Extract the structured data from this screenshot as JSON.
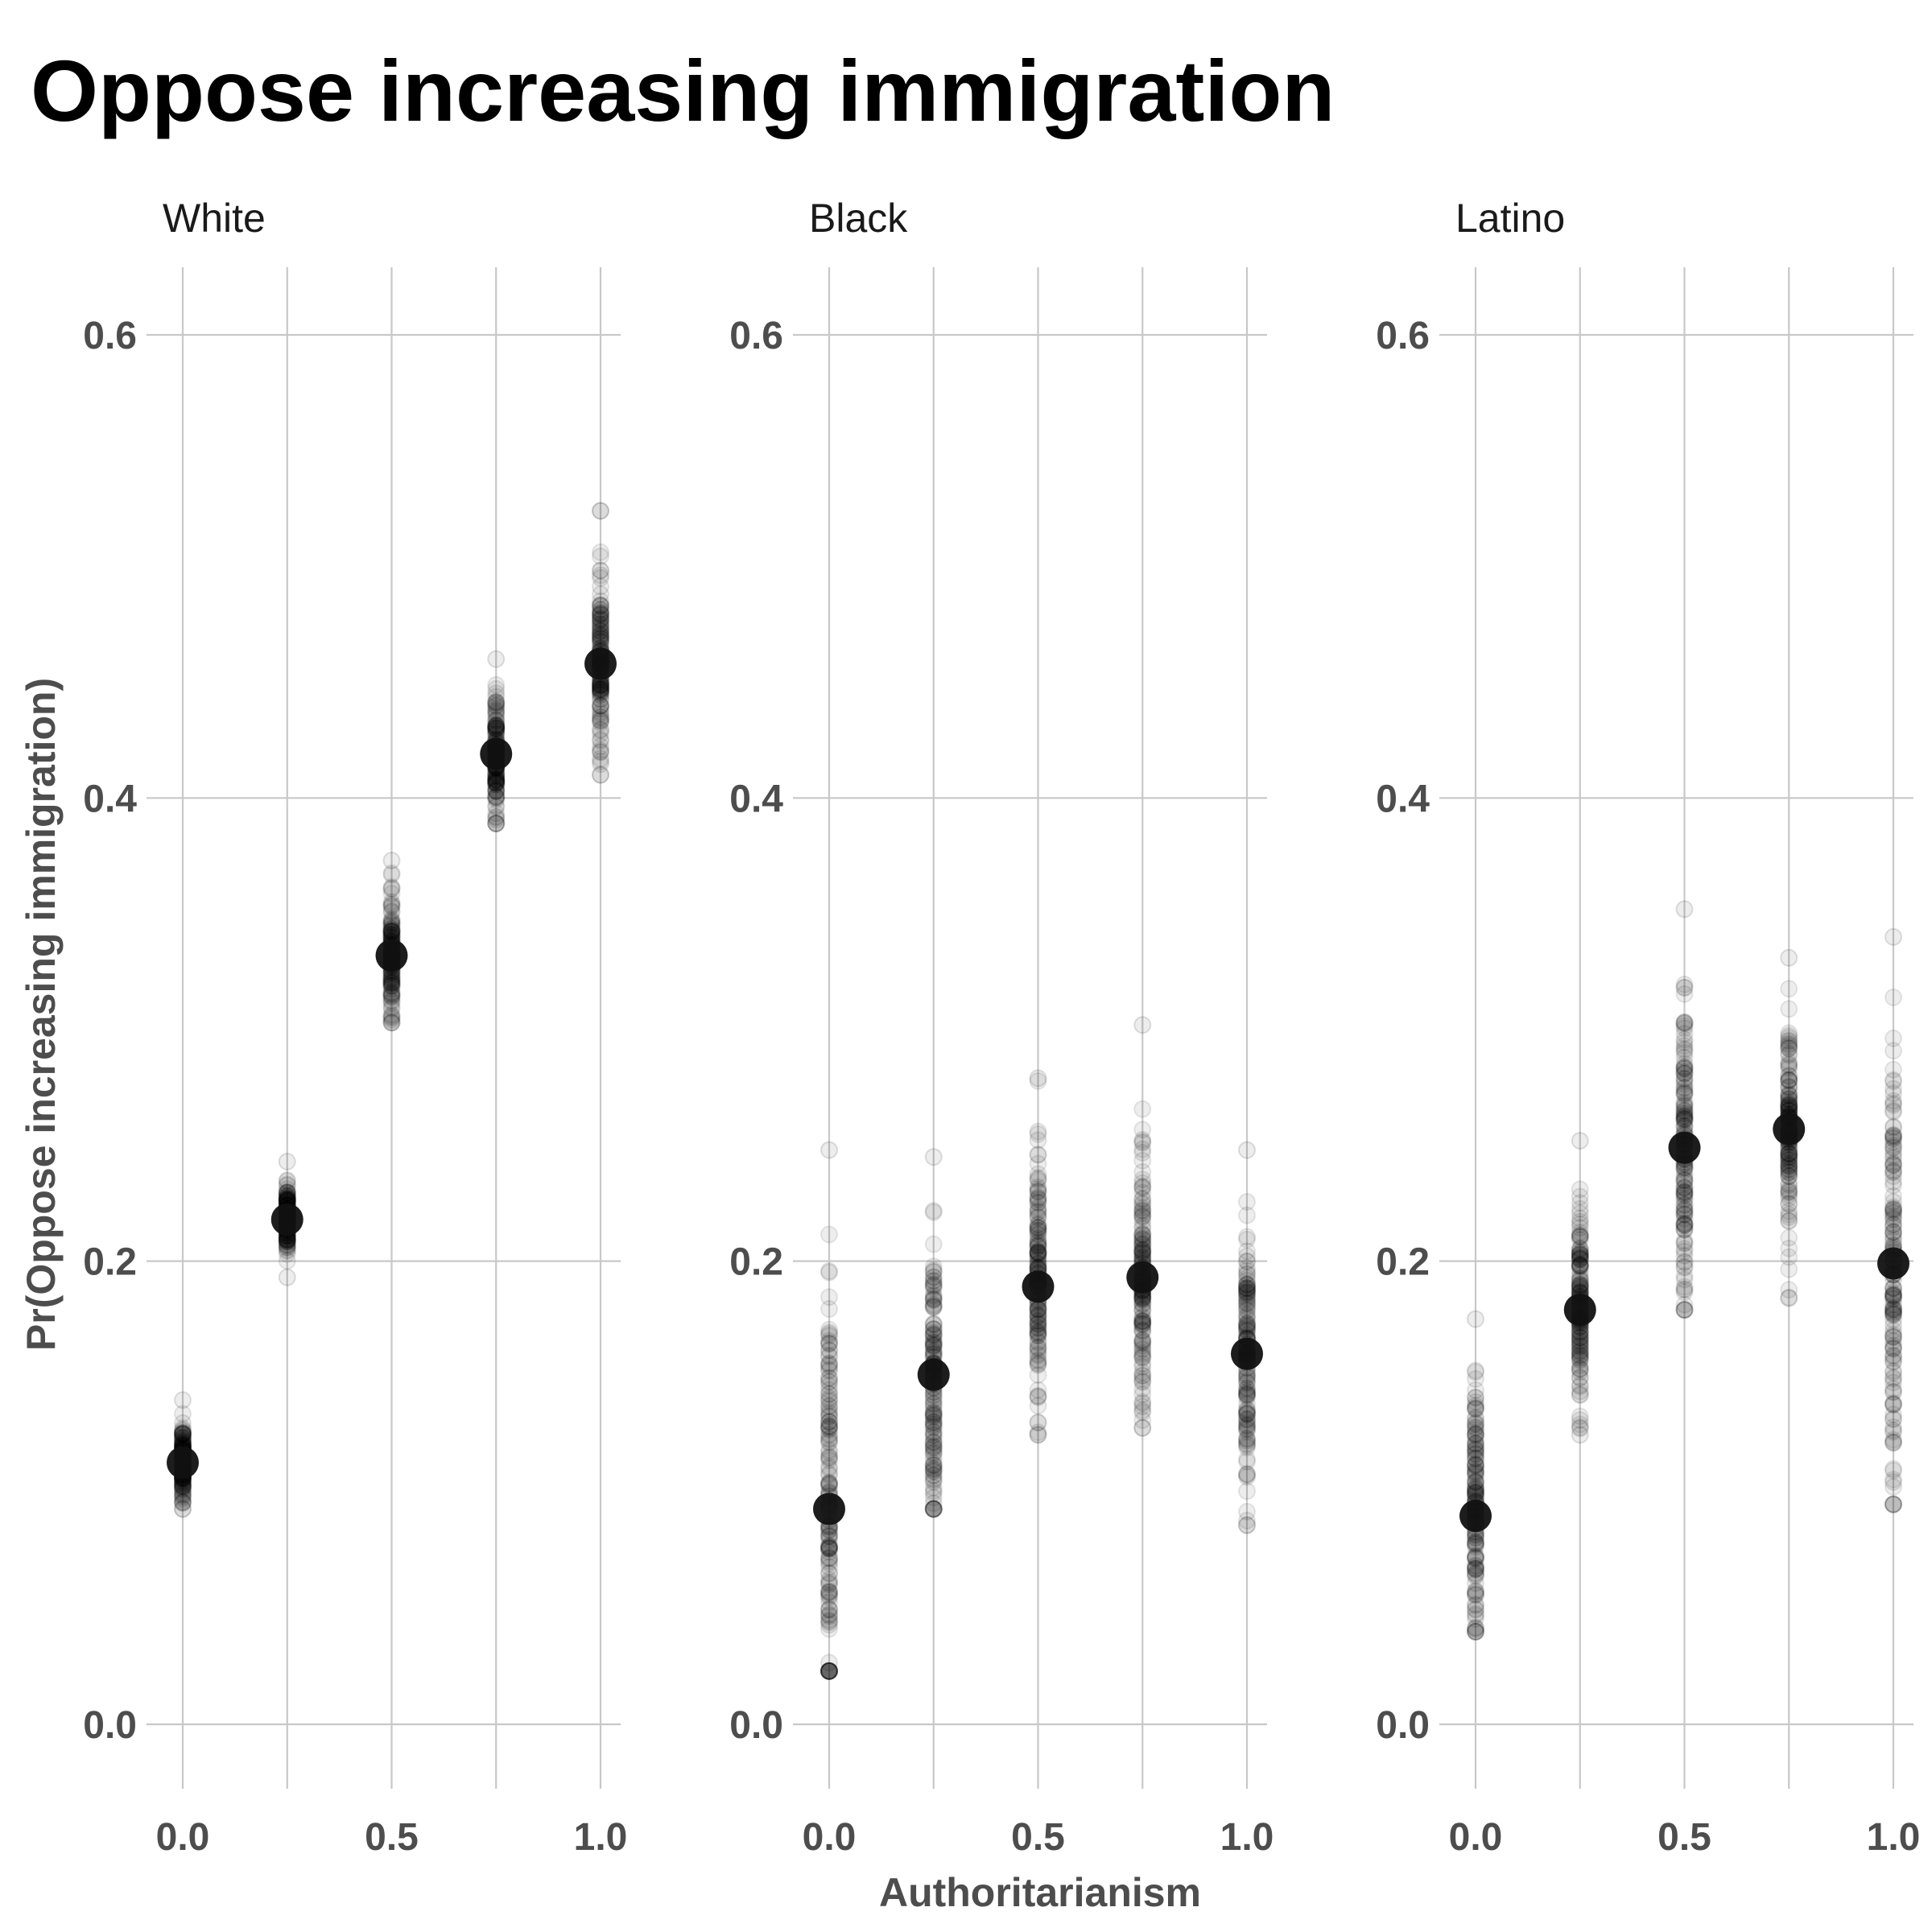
{
  "chart_data": {
    "type": "scatter",
    "title": "Oppose increasing immigration",
    "xlabel": "Authoritarianism",
    "ylabel": "Pr(Oppose increasing immigration)",
    "x_ticks": [
      0.0,
      0.25,
      0.5,
      0.75,
      1.0
    ],
    "x_tick_labels": [
      "0.0",
      "0.5",
      "1.0"
    ],
    "y_ticks": [
      0.0,
      0.2,
      0.4,
      0.6
    ],
    "y_tick_labels": [
      "0.0",
      "0.2",
      "0.4",
      "0.6"
    ],
    "xlim": [
      -0.05,
      1.05
    ],
    "ylim": [
      -0.03,
      0.63
    ],
    "grid": true,
    "point_color": "#000000",
    "facets": [
      {
        "label": "White",
        "means": [
          {
            "x": 0.0,
            "y": 0.113
          },
          {
            "x": 0.25,
            "y": 0.218
          },
          {
            "x": 0.5,
            "y": 0.332
          },
          {
            "x": 0.75,
            "y": 0.419
          },
          {
            "x": 1.0,
            "y": 0.458
          }
        ],
        "draw_ranges": [
          {
            "x": 0.0,
            "min": 0.093,
            "max": 0.14
          },
          {
            "x": 0.25,
            "min": 0.193,
            "max": 0.243
          },
          {
            "x": 0.5,
            "min": 0.303,
            "max": 0.373
          },
          {
            "x": 0.75,
            "min": 0.389,
            "max": 0.46
          },
          {
            "x": 1.0,
            "min": 0.41,
            "max": 0.524
          }
        ]
      },
      {
        "label": "Black",
        "means": [
          {
            "x": 0.0,
            "y": 0.093
          },
          {
            "x": 0.25,
            "y": 0.151
          },
          {
            "x": 0.5,
            "y": 0.189
          },
          {
            "x": 0.75,
            "y": 0.193
          },
          {
            "x": 1.0,
            "y": 0.16
          }
        ],
        "draw_ranges": [
          {
            "x": 0.0,
            "min": 0.023,
            "max": 0.248
          },
          {
            "x": 0.25,
            "min": 0.093,
            "max": 0.245
          },
          {
            "x": 0.5,
            "min": 0.125,
            "max": 0.279
          },
          {
            "x": 0.75,
            "min": 0.128,
            "max": 0.302
          },
          {
            "x": 1.0,
            "min": 0.086,
            "max": 0.248
          }
        ]
      },
      {
        "label": "Latino",
        "means": [
          {
            "x": 0.0,
            "y": 0.09
          },
          {
            "x": 0.25,
            "y": 0.179
          },
          {
            "x": 0.5,
            "y": 0.249
          },
          {
            "x": 0.75,
            "y": 0.257
          },
          {
            "x": 1.0,
            "y": 0.199
          }
        ],
        "draw_ranges": [
          {
            "x": 0.0,
            "min": 0.04,
            "max": 0.175
          },
          {
            "x": 0.25,
            "min": 0.125,
            "max": 0.252
          },
          {
            "x": 0.5,
            "min": 0.179,
            "max": 0.352
          },
          {
            "x": 0.75,
            "min": 0.184,
            "max": 0.331
          },
          {
            "x": 1.0,
            "min": 0.095,
            "max": 0.34
          }
        ]
      }
    ]
  }
}
